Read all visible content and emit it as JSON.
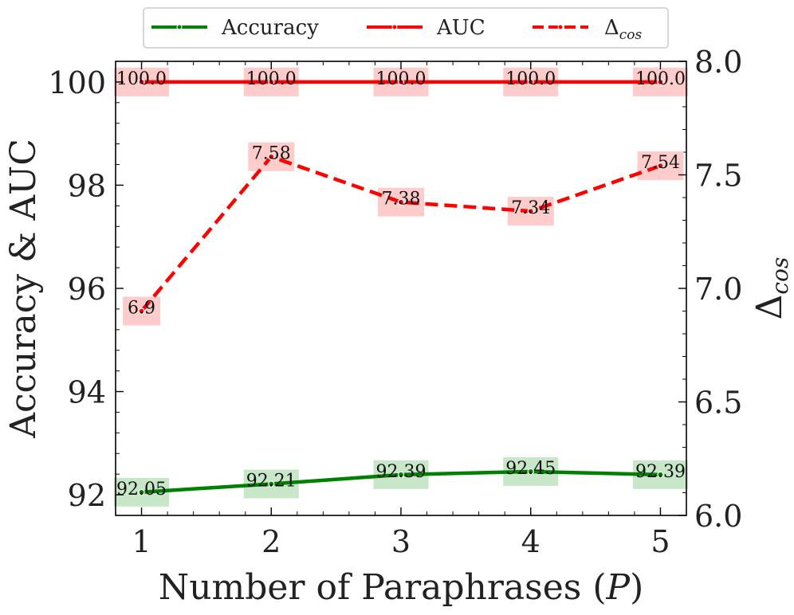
{
  "chart_data": {
    "type": "line",
    "xlabel": "Number of Paraphrases (P)",
    "xlabel_parts": {
      "text": "Number of Paraphrases (",
      "var": "P",
      "close": ")"
    },
    "ylabel_left": "Accuracy & AUC",
    "ylabel_right": "Δcos",
    "ylabel_right_parts": {
      "symbol": "Δ",
      "sub": "cos"
    },
    "x": [
      1,
      2,
      3,
      4,
      5
    ],
    "x_ticks": [
      "1",
      "2",
      "3",
      "4",
      "5"
    ],
    "xlim": [
      0.8,
      5.2
    ],
    "ylim_left": [
      91.6,
      100.4
    ],
    "yticks_left": [
      "92",
      "94",
      "96",
      "98",
      "100"
    ],
    "ylim_right": [
      6.0,
      8.0
    ],
    "yticks_right": [
      "6.0",
      "6.5",
      "7.0",
      "7.5",
      "8.0"
    ],
    "legend_position": "top-center (outside)",
    "series": [
      {
        "name": "Accuracy",
        "axis": "left",
        "values": [
          92.05,
          92.21,
          92.39,
          92.45,
          92.39
        ],
        "labels": [
          "92.05",
          "92.21",
          "92.39",
          "92.45",
          "92.39"
        ],
        "color": "#008000",
        "label_bg": "#c8e6c8",
        "style": "solid"
      },
      {
        "name": "AUC",
        "axis": "left",
        "values": [
          100.0,
          100.0,
          100.0,
          100.0,
          100.0
        ],
        "labels": [
          "100.0",
          "100.0",
          "100.0",
          "100.0",
          "100.0"
        ],
        "color": "#ff0000",
        "label_bg": "#ffcccc",
        "style": "solid"
      },
      {
        "name": "Δcos",
        "legend_parts": {
          "symbol": "Δ",
          "sub": "cos"
        },
        "axis": "right",
        "values": [
          6.9,
          7.58,
          7.38,
          7.34,
          7.54
        ],
        "labels": [
          "6.9",
          "7.58",
          "7.38",
          "7.34",
          "7.54"
        ],
        "color": "#ff0000",
        "label_bg": "#ffcccc",
        "style": "dashed"
      }
    ]
  }
}
